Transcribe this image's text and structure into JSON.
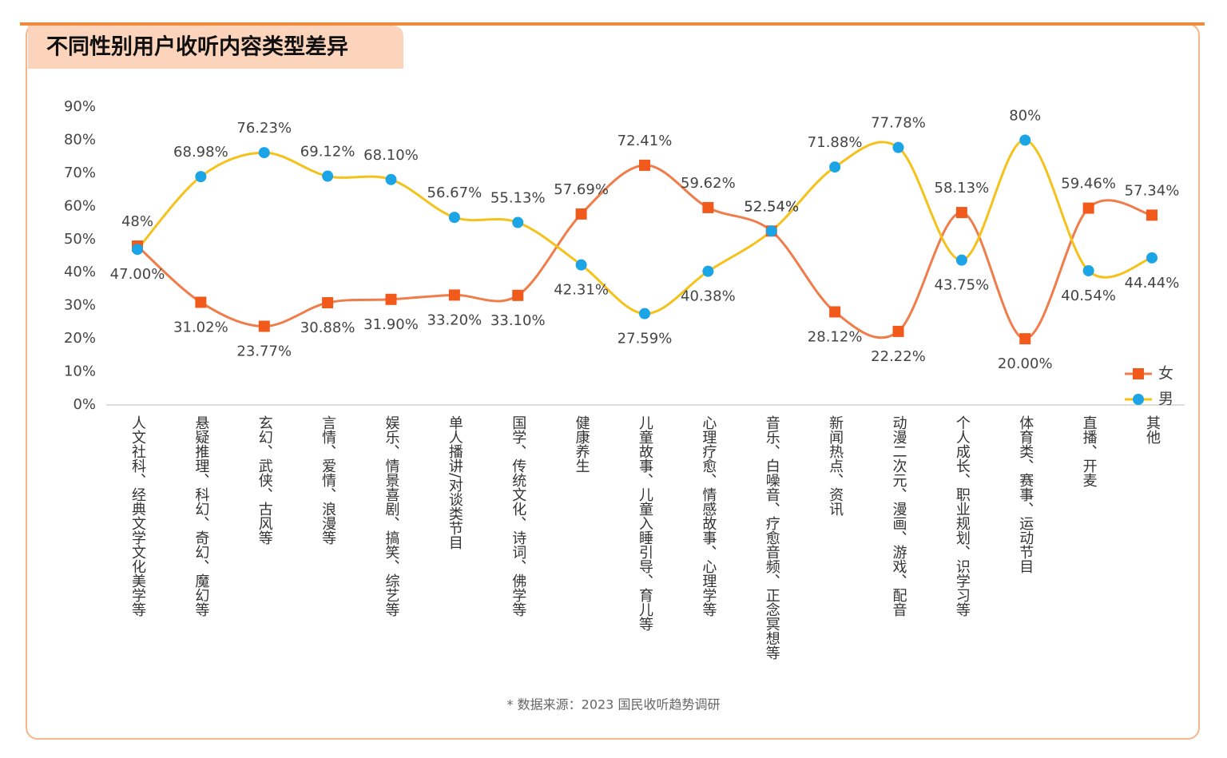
{
  "chart_data": {
    "type": "line",
    "title": "不同性别用户收听内容类型差异",
    "source": "* 数据来源：2023 国民收听趋势调研",
    "categories": [
      "人文社科、经典文学文化美学等",
      "悬疑推理、科幻、奇幻、魔幻等",
      "玄幻、武侠、古风等",
      "言情、爱情、浪漫等",
      "娱乐、情景喜剧、搞笑、综艺等",
      "单人播讲/对谈类节目",
      "国学、传统文化、诗词、佛学等",
      "健康养生",
      "儿童故事、儿童入睡引导、育儿等",
      "心理疗愈、情感故事、心理学等",
      "音乐、白噪音、疗愈音频、正念冥想等",
      "新闻热点、资讯",
      "动漫二次元、漫画、游戏、配音",
      "个人成长、职业规划、识学习等",
      "体育类、赛事、运动节目",
      "直播、开麦",
      "其他"
    ],
    "series": [
      {
        "name": "女",
        "color": "#f07c4a",
        "marker_color": "#f25a1c",
        "marker": "square",
        "values": [
          48,
          31.02,
          23.77,
          30.88,
          31.9,
          33.2,
          33.1,
          57.69,
          72.41,
          59.62,
          52.54,
          28.12,
          22.22,
          58.13,
          20.0,
          59.46,
          57.34
        ],
        "value_labels": [
          "48%",
          "31.02%",
          "23.77%",
          "30.88%",
          "31.90%",
          "33.20%",
          "33.10%",
          "57.69%",
          "72.41%",
          "59.62%",
          "52.54%",
          "28.12%",
          "22.22%",
          "58.13%",
          "20.00%",
          "59.46%",
          "57.34%"
        ]
      },
      {
        "name": "男",
        "color": "#f5c21b",
        "marker_color": "#1ba4e6",
        "marker": "circle",
        "values": [
          47.0,
          68.98,
          76.23,
          69.12,
          68.1,
          56.67,
          55.13,
          42.31,
          27.59,
          40.38,
          52.54,
          71.88,
          77.78,
          43.75,
          80,
          40.54,
          44.44
        ],
        "value_labels": [
          "47.00%",
          "68.98%",
          "76.23%",
          "69.12%",
          "68.10%",
          "56.67%",
          "55.13%",
          "42.31%",
          "27.59%",
          "40.38%",
          "52.54%",
          "71.88%",
          "77.78%",
          "43.75%",
          "80%",
          "40.54%",
          "44.44%"
        ]
      }
    ],
    "ylim": [
      0,
      90
    ],
    "yticks": [
      {
        "value": 0,
        "label": "0%"
      },
      {
        "value": 10,
        "label": "10%"
      },
      {
        "value": 20,
        "label": "20%"
      },
      {
        "value": 30,
        "label": "30%"
      },
      {
        "value": 40,
        "label": "40%"
      },
      {
        "value": 50,
        "label": "50%"
      },
      {
        "value": 60,
        "label": "60%"
      },
      {
        "value": 70,
        "label": "70%"
      },
      {
        "value": 80,
        "label": "80%"
      },
      {
        "value": 90,
        "label": "90%"
      }
    ],
    "grid": false,
    "legend": "right"
  }
}
